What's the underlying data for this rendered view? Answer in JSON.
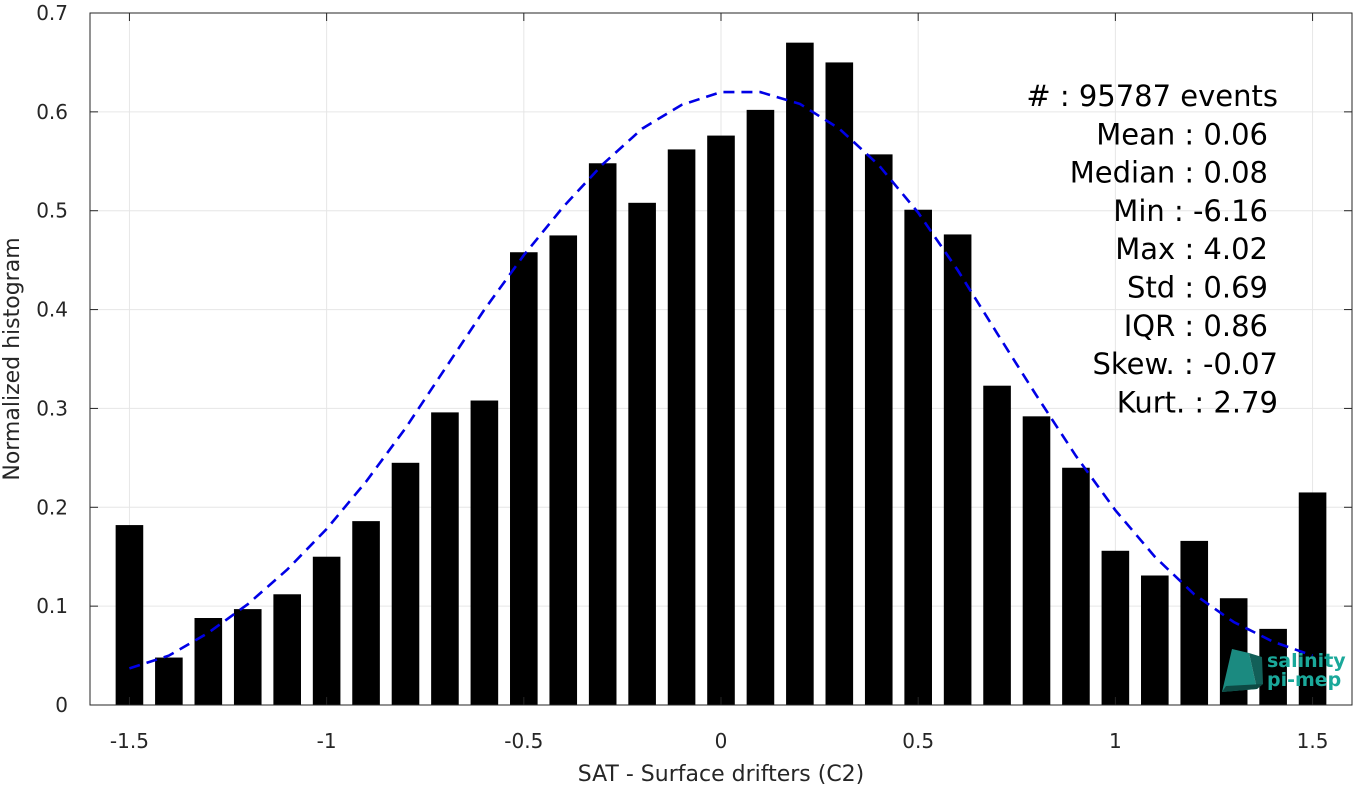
{
  "chart_data": {
    "type": "bar",
    "xlabel": "SAT - Surface drifters (C2)",
    "ylabel": "Normalized histogram",
    "xlim": [
      -1.6,
      1.6
    ],
    "ylim": [
      0,
      0.7
    ],
    "xticks": [
      -1.5,
      -1,
      -0.5,
      0,
      0.5,
      1,
      1.5
    ],
    "xtick_labels": [
      "-1.5",
      "-1",
      "-0.5",
      "0",
      "0.5",
      "1",
      "1.5"
    ],
    "yticks": [
      0,
      0.1,
      0.2,
      0.3,
      0.4,
      0.5,
      0.6,
      0.7
    ],
    "ytick_labels": [
      "0",
      "0.1",
      "0.2",
      "0.3",
      "0.4",
      "0.5",
      "0.6",
      "0.7"
    ],
    "grid": true,
    "bar_color": "#000000",
    "bars": {
      "x": [
        -1.5,
        -1.4,
        -1.3,
        -1.2,
        -1.1,
        -1.0,
        -0.9,
        -0.8,
        -0.7,
        -0.6,
        -0.5,
        -0.4,
        -0.3,
        -0.2,
        -0.1,
        0.0,
        0.1,
        0.2,
        0.3,
        0.4,
        0.5,
        0.6,
        0.7,
        0.8,
        0.9,
        1.0,
        1.1,
        1.2,
        1.3,
        1.4,
        1.5
      ],
      "values": [
        0.182,
        0.048,
        0.088,
        0.097,
        0.112,
        0.15,
        0.186,
        0.245,
        0.296,
        0.308,
        0.458,
        0.475,
        0.548,
        0.508,
        0.562,
        0.576,
        0.602,
        0.67,
        0.65,
        0.557,
        0.501,
        0.476,
        0.323,
        0.292,
        0.24,
        0.156,
        0.131,
        0.166,
        0.108,
        0.077,
        0.215
      ],
      "width": 0.07
    },
    "fit_curve": {
      "style": "dashed",
      "color": "#0000e6",
      "x": [
        -1.5,
        -1.4,
        -1.3,
        -1.2,
        -1.1,
        -1.0,
        -0.9,
        -0.8,
        -0.7,
        -0.6,
        -0.5,
        -0.4,
        -0.3,
        -0.2,
        -0.1,
        0.0,
        0.1,
        0.2,
        0.3,
        0.4,
        0.5,
        0.6,
        0.7,
        0.8,
        0.9,
        1.0,
        1.1,
        1.2,
        1.3,
        1.4,
        1.5
      ],
      "y": [
        0.037,
        0.05,
        0.073,
        0.102,
        0.137,
        0.178,
        0.226,
        0.28,
        0.34,
        0.4,
        0.455,
        0.504,
        0.547,
        0.583,
        0.607,
        0.62,
        0.62,
        0.608,
        0.583,
        0.546,
        0.498,
        0.44,
        0.376,
        0.313,
        0.252,
        0.197,
        0.15,
        0.112,
        0.084,
        0.064,
        0.05
      ]
    }
  },
  "stats": [
    {
      "label": "#  : 95787 events"
    },
    {
      "label": "Mean : 0.06"
    },
    {
      "label": "Median : 0.08"
    },
    {
      "label": "Min : -6.16"
    },
    {
      "label": "Max : 4.02"
    },
    {
      "label": "Std : 0.69"
    },
    {
      "label": "IQR : 0.86"
    },
    {
      "label": "Skew. : -0.07"
    },
    {
      "label": "Kurt. : 2.79"
    }
  ],
  "logo": {
    "line1": "salinity",
    "line2": "pi-mep",
    "color": "#1aa89a"
  }
}
